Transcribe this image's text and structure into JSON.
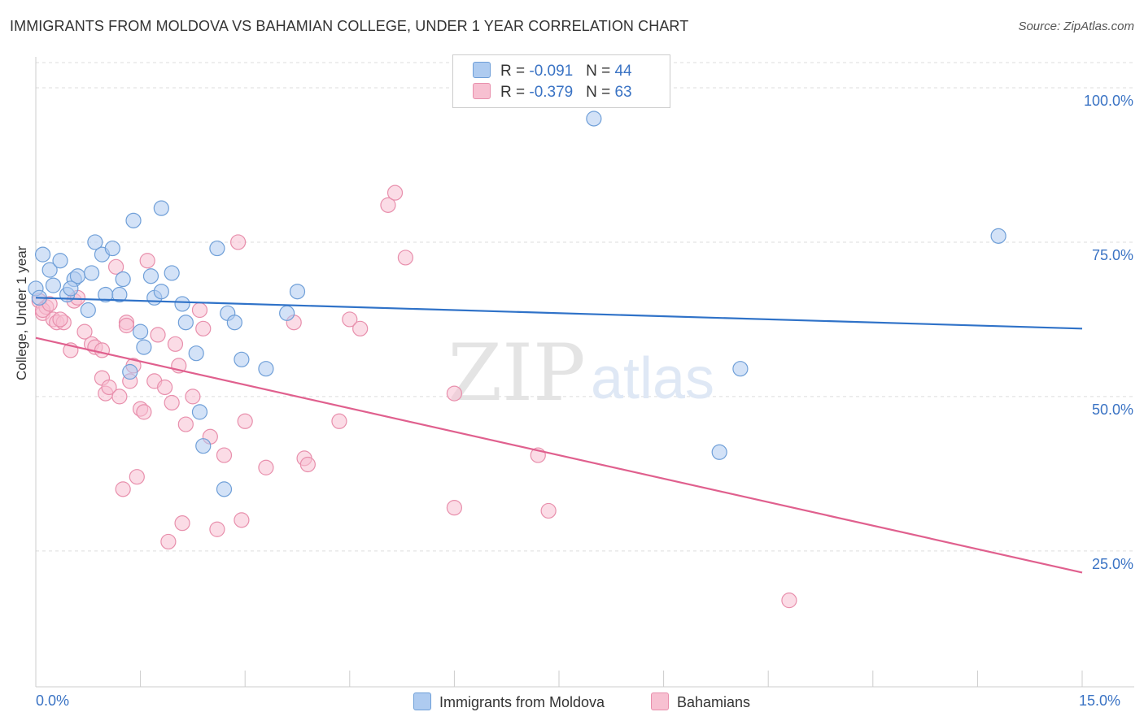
{
  "title": "IMMIGRANTS FROM MOLDOVA VS BAHAMIAN COLLEGE, UNDER 1 YEAR CORRELATION CHART",
  "source": "Source: ZipAtlas.com",
  "watermark": {
    "zip": "ZIP",
    "atlas": "atlas"
  },
  "legend": {
    "rows": [
      {
        "r_label": "R = ",
        "r_value": "-0.091",
        "n_label": "N = ",
        "n_value": "44"
      },
      {
        "r_label": "R = ",
        "r_value": "-0.379",
        "n_label": "N = ",
        "n_value": "63"
      }
    ]
  },
  "bottom_legend": {
    "series1": "Immigrants from Moldova",
    "series2": "Bahamians"
  },
  "colors": {
    "blue_fill": "#aecbf0",
    "blue_stroke": "#6f9fd8",
    "blue_line": "#2f72c8",
    "pink_fill": "#f7c0d1",
    "pink_stroke": "#e88fac",
    "pink_line": "#e0608e",
    "axis_text": "#3a73c4",
    "grid": "#dddddd"
  },
  "chart_data": {
    "type": "scatter",
    "title": "IMMIGRANTS FROM MOLDOVA VS BAHAMIAN COLLEGE, UNDER 1 YEAR CORRELATION CHART",
    "xlabel": "",
    "ylabel": "College, Under 1 year",
    "xlim": [
      0,
      15
    ],
    "ylim": [
      3,
      105
    ],
    "x_tick_labels": [
      "0.0%",
      "15.0%"
    ],
    "y_ticks": [
      25,
      50,
      75,
      100
    ],
    "y_tick_labels": [
      "25.0%",
      "50.0%",
      "75.0%",
      "100.0%"
    ],
    "grid": true,
    "legend_position": "top-center",
    "series": [
      {
        "name": "Immigrants from Moldova",
        "r": -0.091,
        "n": 44,
        "trend": {
          "x": [
            0,
            15
          ],
          "y": [
            66.0,
            61.0
          ]
        },
        "points": [
          [
            0.0,
            67.5
          ],
          [
            0.1,
            73.0
          ],
          [
            0.2,
            70.5
          ],
          [
            0.25,
            68.0
          ],
          [
            0.35,
            72.0
          ],
          [
            0.45,
            66.5
          ],
          [
            0.55,
            69.0
          ],
          [
            0.6,
            69.5
          ],
          [
            0.75,
            64.0
          ],
          [
            0.8,
            70.0
          ],
          [
            0.85,
            75.0
          ],
          [
            0.95,
            73.0
          ],
          [
            1.0,
            66.5
          ],
          [
            1.1,
            74.0
          ],
          [
            1.2,
            66.5
          ],
          [
            1.25,
            69.0
          ],
          [
            1.35,
            54.0
          ],
          [
            1.4,
            78.5
          ],
          [
            1.5,
            60.5
          ],
          [
            1.55,
            58.0
          ],
          [
            1.65,
            69.5
          ],
          [
            1.7,
            66.0
          ],
          [
            1.8,
            67.0
          ],
          [
            1.8,
            80.5
          ],
          [
            1.95,
            70.0
          ],
          [
            2.1,
            65.0
          ],
          [
            2.15,
            62.0
          ],
          [
            2.35,
            47.5
          ],
          [
            2.3,
            57.0
          ],
          [
            2.4,
            42.0
          ],
          [
            2.6,
            74.0
          ],
          [
            2.7,
            35.0
          ],
          [
            2.75,
            63.5
          ],
          [
            2.85,
            62.0
          ],
          [
            2.95,
            56.0
          ],
          [
            3.3,
            54.5
          ],
          [
            3.6,
            63.5
          ],
          [
            3.75,
            67.0
          ],
          [
            8.0,
            95.0
          ],
          [
            9.8,
            41.0
          ],
          [
            10.1,
            54.5
          ],
          [
            13.8,
            76.0
          ],
          [
            0.05,
            66.0
          ],
          [
            0.5,
            67.5
          ]
        ]
      },
      {
        "name": "Bahamians",
        "r": -0.379,
        "n": 63,
        "trend": {
          "x": [
            0,
            15
          ],
          "y": [
            59.5,
            21.5
          ]
        },
        "points": [
          [
            0.05,
            65.5
          ],
          [
            0.1,
            63.5
          ],
          [
            0.15,
            64.5
          ],
          [
            0.25,
            62.5
          ],
          [
            0.3,
            62.0
          ],
          [
            0.4,
            62.0
          ],
          [
            0.5,
            57.5
          ],
          [
            0.55,
            65.5
          ],
          [
            0.6,
            66.0
          ],
          [
            0.7,
            60.5
          ],
          [
            0.8,
            58.5
          ],
          [
            0.85,
            58.0
          ],
          [
            0.95,
            57.5
          ],
          [
            0.95,
            53.0
          ],
          [
            1.0,
            50.5
          ],
          [
            1.05,
            51.5
          ],
          [
            1.15,
            71.0
          ],
          [
            1.2,
            50.0
          ],
          [
            1.25,
            35.0
          ],
          [
            1.3,
            62.0
          ],
          [
            1.35,
            52.5
          ],
          [
            1.4,
            55.0
          ],
          [
            1.45,
            37.0
          ],
          [
            1.5,
            48.0
          ],
          [
            1.55,
            47.5
          ],
          [
            1.6,
            72.0
          ],
          [
            1.7,
            52.5
          ],
          [
            1.75,
            60.0
          ],
          [
            1.85,
            51.5
          ],
          [
            1.9,
            26.5
          ],
          [
            1.95,
            49.0
          ],
          [
            2.0,
            58.5
          ],
          [
            2.05,
            55.0
          ],
          [
            2.1,
            29.5
          ],
          [
            2.15,
            45.5
          ],
          [
            2.25,
            50.0
          ],
          [
            2.35,
            64.0
          ],
          [
            2.4,
            61.0
          ],
          [
            2.5,
            43.5
          ],
          [
            2.6,
            28.5
          ],
          [
            2.7,
            40.5
          ],
          [
            2.9,
            75.0
          ],
          [
            2.95,
            30.0
          ],
          [
            3.0,
            46.0
          ],
          [
            3.3,
            38.5
          ],
          [
            3.7,
            62.0
          ],
          [
            3.85,
            40.0
          ],
          [
            3.9,
            39.0
          ],
          [
            4.35,
            46.0
          ],
          [
            4.5,
            62.5
          ],
          [
            4.65,
            61.0
          ],
          [
            5.05,
            81.0
          ],
          [
            5.15,
            83.0
          ],
          [
            5.3,
            72.5
          ],
          [
            6.0,
            50.5
          ],
          [
            6.0,
            32.0
          ],
          [
            7.2,
            40.5
          ],
          [
            7.35,
            31.5
          ],
          [
            10.8,
            17.0
          ],
          [
            0.1,
            64.0
          ],
          [
            0.2,
            65.0
          ],
          [
            0.35,
            62.5
          ],
          [
            1.3,
            61.5
          ]
        ]
      }
    ]
  }
}
